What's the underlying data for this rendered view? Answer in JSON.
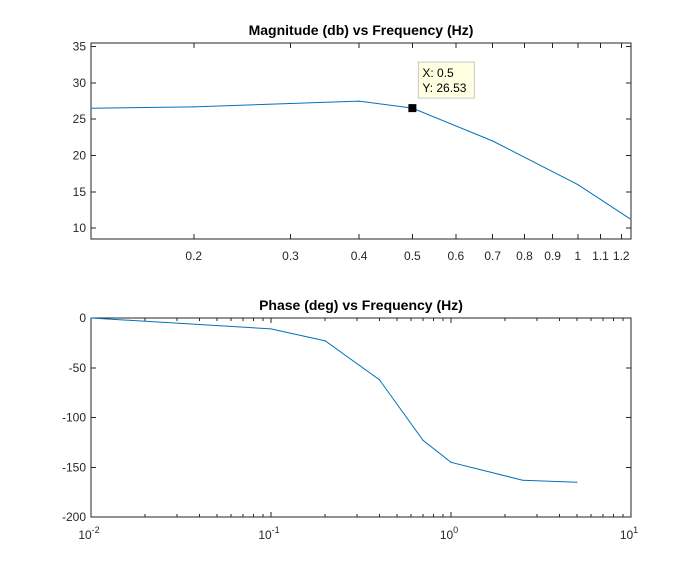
{
  "colors": {
    "series": "#0072bd",
    "axes": "#262626",
    "marker": "#000000",
    "datatip_bg": "#ffffe1"
  },
  "chart_data": [
    {
      "type": "line",
      "title": "Magnitude (db) vs Frequency (Hz)",
      "xscale": "log",
      "xlim": [
        0.13,
        1.25
      ],
      "ylim": [
        8.5,
        35.5
      ],
      "xticks": [
        {
          "v": 0.2,
          "label": "0.2"
        },
        {
          "v": 0.3,
          "label": "0.3"
        },
        {
          "v": 0.4,
          "label": "0.4"
        },
        {
          "v": 0.5,
          "label": "0.5"
        },
        {
          "v": 0.6,
          "label": "0.6"
        },
        {
          "v": 0.7,
          "label": "0.7"
        },
        {
          "v": 0.8,
          "label": "0.8"
        },
        {
          "v": 0.9,
          "label": "0.9"
        },
        {
          "v": 1.0,
          "label": "1"
        },
        {
          "v": 1.1,
          "label": "1.1"
        },
        {
          "v": 1.2,
          "label": "1.2"
        }
      ],
      "yticks": [
        {
          "v": 10,
          "label": "10"
        },
        {
          "v": 15,
          "label": "15"
        },
        {
          "v": 20,
          "label": "20"
        },
        {
          "v": 25,
          "label": "25"
        },
        {
          "v": 30,
          "label": "30"
        },
        {
          "v": 35,
          "label": "35"
        }
      ],
      "series": [
        {
          "x": [
            0.13,
            0.2,
            0.4,
            0.5,
            0.7,
            1.0,
            1.25
          ],
          "y": [
            26.5,
            26.7,
            27.5,
            26.53,
            22.0,
            16.0,
            11.2
          ]
        }
      ],
      "datatip": {
        "x": 0.5,
        "y": 26.53,
        "line1": "X: 0.5",
        "line2": "Y: 26.53"
      }
    },
    {
      "type": "line",
      "title": "Phase (deg) vs Frequency (Hz)",
      "xscale": "log",
      "xlim": [
        0.01,
        10
      ],
      "ylim": [
        -200,
        0
      ],
      "xticks": [
        {
          "v": 0.01,
          "base": "10",
          "exp": "-2"
        },
        {
          "v": 0.1,
          "base": "10",
          "exp": "-1"
        },
        {
          "v": 1,
          "base": "10",
          "exp": "0"
        },
        {
          "v": 10,
          "base": "10",
          "exp": "1"
        }
      ],
      "yticks": [
        {
          "v": 0,
          "label": "0"
        },
        {
          "v": -50,
          "label": "-50"
        },
        {
          "v": -100,
          "label": "-100"
        },
        {
          "v": -150,
          "label": "-150"
        },
        {
          "v": -200,
          "label": "-200"
        }
      ],
      "series": [
        {
          "x": [
            0.01,
            0.1,
            0.2,
            0.4,
            0.7,
            1.0,
            2.5,
            5.0
          ],
          "y": [
            0,
            -11,
            -23,
            -62,
            -123,
            -145,
            -163,
            -165
          ]
        }
      ]
    }
  ]
}
